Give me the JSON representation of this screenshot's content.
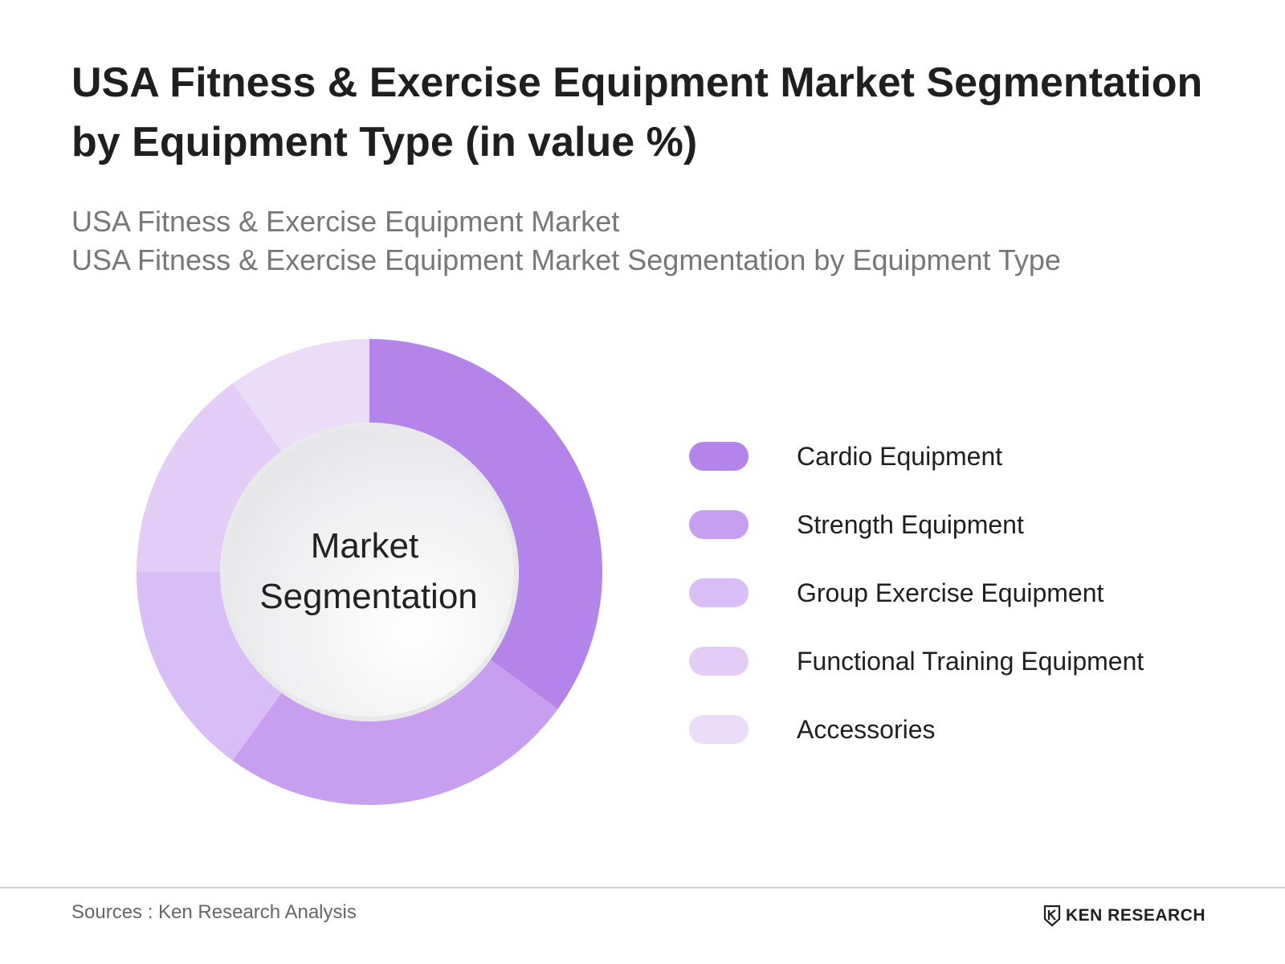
{
  "header": {
    "title": "USA Fitness & Exercise Equipment Market Segmentation by Equipment Type (in value %)",
    "subtitle_line1": "USA Fitness & Exercise Equipment Market",
    "subtitle_line2": "USA Fitness & Exercise Equipment Market Segmentation by Equipment Type"
  },
  "chart_data": {
    "type": "pie",
    "style": "donut",
    "center_label_line1": "Market",
    "center_label_line2": "Segmentation",
    "legend_position": "right",
    "slices": [
      {
        "name": "Cardio Equipment",
        "value": 35,
        "color": "#b584eb"
      },
      {
        "name": "Strength Equipment",
        "value": 25,
        "color": "#c79ef0"
      },
      {
        "name": "Group Exercise Equipment",
        "value": 15,
        "color": "#d9bdf6"
      },
      {
        "name": "Functional Training Equipment",
        "value": 15,
        "color": "#e3cdf7"
      },
      {
        "name": "Accessories",
        "value": 10,
        "color": "#ebdcf9"
      }
    ]
  },
  "footer": {
    "source": "Sources : Ken Research Analysis",
    "brand": "KEN RESEARCH"
  }
}
